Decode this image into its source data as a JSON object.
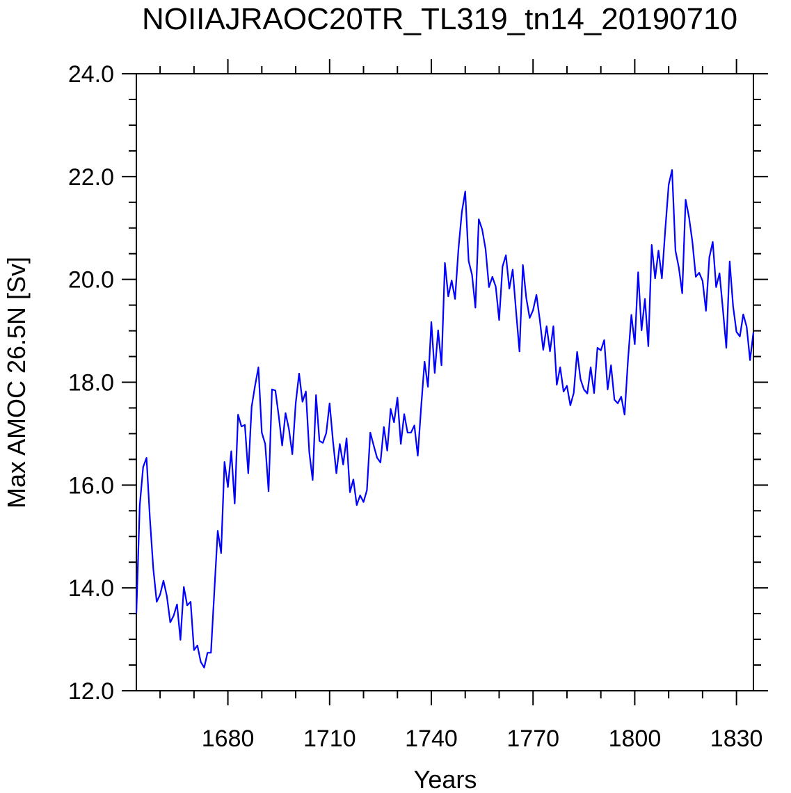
{
  "chart_data": {
    "type": "line",
    "title": "NOIIAJRAOC20TR_TL319_tn14_20190710",
    "x_label": "Years",
    "y_label": "Max AMOC 26.5N [Sv]",
    "xlim": [
      1653,
      1835
    ],
    "ylim": [
      12,
      24
    ],
    "xticks": [
      1680,
      1710,
      1740,
      1770,
      1800,
      1830
    ],
    "xminorticks": [
      1660,
      1670,
      1690,
      1700,
      1720,
      1730,
      1750,
      1760,
      1780,
      1790,
      1810,
      1820
    ],
    "yticks": [
      {
        "value": 12,
        "label": "12.0"
      },
      {
        "value": 14,
        "label": "14.0"
      },
      {
        "value": 16,
        "label": "16.0"
      },
      {
        "value": 18,
        "label": "18.0"
      },
      {
        "value": 20,
        "label": "20.0"
      },
      {
        "value": 22,
        "label": "22.0"
      },
      {
        "value": 24,
        "label": "24.0"
      }
    ],
    "yminorticks": [
      12.5,
      13,
      13.5,
      14.5,
      15,
      15.5,
      16.5,
      17,
      17.5,
      18.5,
      19,
      19.5,
      20.5,
      21,
      21.5,
      22.5,
      23,
      23.5
    ],
    "grid": false,
    "x": [
      1653,
      1654,
      1655,
      1656,
      1657,
      1658,
      1659,
      1660,
      1661,
      1662,
      1663,
      1664,
      1665,
      1666,
      1667,
      1668,
      1669,
      1670,
      1671,
      1672,
      1673,
      1674,
      1675,
      1676,
      1677,
      1678,
      1679,
      1680,
      1681,
      1682,
      1683,
      1684,
      1685,
      1686,
      1687,
      1688,
      1689,
      1690,
      1691,
      1692,
      1693,
      1694,
      1695,
      1696,
      1697,
      1698,
      1699,
      1700,
      1701,
      1702,
      1703,
      1704,
      1705,
      1706,
      1707,
      1708,
      1709,
      1710,
      1711,
      1712,
      1713,
      1714,
      1715,
      1716,
      1717,
      1718,
      1719,
      1720,
      1721,
      1722,
      1723,
      1724,
      1725,
      1726,
      1727,
      1728,
      1729,
      1730,
      1731,
      1732,
      1733,
      1734,
      1735,
      1736,
      1737,
      1738,
      1739,
      1740,
      1741,
      1742,
      1743,
      1744,
      1745,
      1746,
      1747,
      1748,
      1749,
      1750,
      1751,
      1752,
      1753,
      1754,
      1755,
      1756,
      1757,
      1758,
      1759,
      1760,
      1761,
      1762,
      1763,
      1764,
      1765,
      1766,
      1767,
      1768,
      1769,
      1770,
      1771,
      1772,
      1773,
      1774,
      1775,
      1776,
      1777,
      1778,
      1779,
      1780,
      1781,
      1782,
      1783,
      1784,
      1785,
      1786,
      1787,
      1788,
      1789,
      1790,
      1791,
      1792,
      1793,
      1794,
      1795,
      1796,
      1797,
      1798,
      1799,
      1800,
      1801,
      1802,
      1803,
      1804,
      1805,
      1806,
      1807,
      1808,
      1809,
      1810,
      1811,
      1812,
      1813,
      1814,
      1815,
      1816,
      1817,
      1818,
      1819,
      1820,
      1821,
      1822,
      1823,
      1824,
      1825,
      1826,
      1827,
      1828,
      1829,
      1830,
      1831,
      1832,
      1833,
      1834,
      1835
    ],
    "series": [
      {
        "color": "#0000ff",
        "values": [
          13.5,
          15.6,
          16.35,
          16.53,
          15.35,
          14.37,
          13.73,
          13.87,
          14.14,
          13.84,
          13.33,
          13.46,
          13.68,
          12.99,
          14.02,
          13.66,
          13.73,
          12.79,
          12.88,
          12.56,
          12.45,
          12.74,
          12.74,
          13.93,
          15.11,
          14.68,
          16.45,
          15.96,
          16.66,
          15.64,
          17.37,
          17.14,
          17.17,
          16.23,
          17.52,
          17.93,
          18.29,
          17.02,
          16.8,
          15.88,
          17.86,
          17.84,
          17.34,
          16.77,
          17.4,
          17.09,
          16.6,
          17.59,
          18.17,
          17.62,
          17.82,
          16.64,
          16.1,
          17.75,
          16.86,
          16.82,
          17.01,
          17.59,
          16.85,
          16.23,
          16.8,
          16.4,
          16.91,
          15.86,
          16.11,
          15.61,
          15.8,
          15.67,
          15.9,
          17.02,
          16.77,
          16.53,
          16.44,
          17.13,
          16.67,
          17.48,
          17.22,
          17.7,
          16.8,
          17.38,
          17.02,
          17.02,
          17.16,
          16.57,
          17.52,
          18.4,
          17.91,
          19.17,
          18.18,
          19.01,
          18.33,
          20.32,
          19.67,
          19.98,
          19.62,
          20.59,
          21.31,
          21.71,
          20.36,
          20.09,
          19.45,
          21.17,
          20.97,
          20.59,
          19.85,
          20.05,
          19.86,
          19.21,
          20.25,
          20.47,
          19.82,
          20.19,
          19.37,
          18.6,
          20.28,
          19.64,
          19.25,
          19.4,
          19.7,
          19.21,
          18.63,
          19.09,
          18.6,
          19.09,
          17.95,
          18.29,
          17.82,
          17.93,
          17.55,
          17.79,
          18.59,
          18.06,
          17.86,
          17.78,
          18.29,
          17.79,
          18.67,
          18.62,
          18.82,
          17.86,
          18.33,
          17.66,
          17.59,
          17.72,
          17.37,
          18.43,
          19.31,
          18.74,
          20.14,
          19.01,
          19.62,
          18.7,
          20.67,
          20.02,
          20.56,
          20.02,
          20.97,
          21.84,
          22.13,
          20.56,
          20.23,
          19.73,
          21.55,
          21.21,
          20.73,
          20.05,
          20.13,
          19.97,
          19.39,
          20.43,
          20.73,
          19.85,
          20.12,
          19.41,
          18.67,
          20.35,
          19.48,
          18.98,
          18.89,
          19.32,
          19.08,
          18.43,
          18.97
        ]
      }
    ]
  }
}
